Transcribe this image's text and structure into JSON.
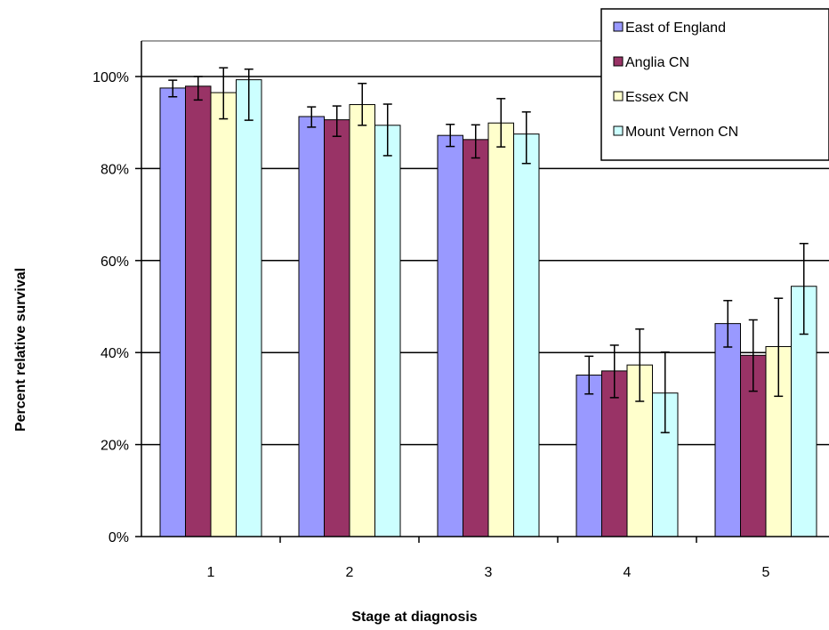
{
  "chart_data": {
    "type": "bar",
    "title": "",
    "xlabel": "Stage at diagnosis",
    "ylabel": "Percent relative survival",
    "categories": [
      "1",
      "2",
      "3",
      "4",
      "5"
    ],
    "ylim": [
      0,
      100
    ],
    "yticks": [
      0,
      20,
      40,
      60,
      80,
      100
    ],
    "ytick_labels": [
      "0%",
      "20%",
      "40%",
      "60%",
      "80%",
      "100%"
    ],
    "grid": true,
    "legend_position": "top-right",
    "series": [
      {
        "name": "East of England",
        "color": "#9999ff",
        "values": [
          97.5,
          91.3,
          87.2,
          35.1,
          46.3
        ],
        "err_low": [
          95.6,
          89.0,
          84.8,
          31.0,
          41.2
        ],
        "err_high": [
          99.2,
          93.4,
          89.6,
          39.2,
          51.3
        ]
      },
      {
        "name": "Anglia CN",
        "color": "#993366",
        "values": [
          97.9,
          90.6,
          86.3,
          36.0,
          39.4
        ],
        "err_low": [
          94.9,
          87.0,
          82.3,
          30.2,
          31.6
        ],
        "err_high": [
          100.0,
          93.6,
          89.5,
          41.6,
          47.1
        ]
      },
      {
        "name": "Essex CN",
        "color": "#ffffcc",
        "values": [
          96.5,
          93.9,
          89.9,
          37.3,
          41.3
        ],
        "err_low": [
          90.8,
          89.4,
          84.7,
          29.4,
          30.5
        ],
        "err_high": [
          101.9,
          98.5,
          95.2,
          45.1,
          51.8
        ]
      },
      {
        "name": "Mount Vernon CN",
        "color": "#ccffff",
        "values": [
          99.3,
          89.4,
          87.5,
          31.2,
          54.4
        ],
        "err_low": [
          90.5,
          82.8,
          81.1,
          22.6,
          44.0
        ],
        "err_high": [
          101.6,
          94.0,
          92.3,
          40.1,
          63.7
        ]
      }
    ]
  }
}
